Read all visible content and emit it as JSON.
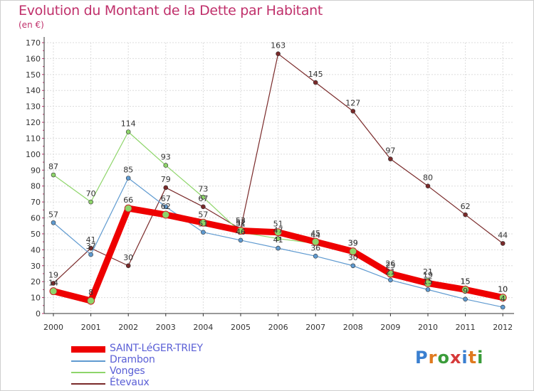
{
  "header": {
    "title": "Evolution du Montant de la Dette par Habitant",
    "subtitle": "(en €)"
  },
  "logo": {
    "text": "Proxiti",
    "letters": [
      "P",
      "r",
      "o",
      "x",
      "i",
      "t",
      "i"
    ],
    "colors": [
      "#3a7fd0",
      "#e07a1f",
      "#3a9c3a",
      "#d63a3a",
      "#3a7fd0",
      "#e07a1f",
      "#3a9c3a"
    ]
  },
  "chart_data": {
    "type": "line",
    "title": "Evolution du Montant de la Dette par Habitant",
    "subtitle": "(en €)",
    "xlabel": "",
    "ylabel": "",
    "ylim": [
      0,
      170
    ],
    "yticks": [
      0,
      10,
      20,
      30,
      40,
      50,
      60,
      70,
      80,
      90,
      100,
      110,
      120,
      130,
      140,
      150,
      160,
      170
    ],
    "grid": true,
    "legend": "bottom-left",
    "categories": [
      "2000",
      "2001",
      "2002",
      "2003",
      "2004",
      "2005",
      "2006",
      "2007",
      "2008",
      "2009",
      "2010",
      "2011",
      "2012"
    ],
    "series": [
      {
        "name": "Étevaux",
        "color": "#7a2a2a",
        "values": [
          19,
          41,
          30,
          79,
          67,
          53,
          163,
          145,
          127,
          97,
          80,
          62,
          44
        ],
        "labels": [
          "19",
          "41",
          "30",
          "79",
          "67",
          "53",
          "163",
          "145",
          "127",
          "97",
          "80",
          "62",
          "44"
        ]
      },
      {
        "name": "Drambon",
        "color": "#5f9ad0",
        "values": [
          57,
          37,
          85,
          67,
          51,
          46,
          41,
          36,
          30,
          21,
          15,
          9,
          4
        ],
        "labels": [
          "57",
          "37",
          "85",
          "67",
          "51",
          "46",
          "41",
          "36",
          "30",
          "21",
          "15",
          "9",
          "4"
        ]
      },
      {
        "name": "Vonges",
        "color": "#8ed56a",
        "values": [
          87,
          70,
          114,
          93,
          73,
          51,
          47,
          44,
          39,
          26,
          21,
          15,
          10
        ],
        "labels": [
          "87",
          "70",
          "114",
          "93",
          "73",
          "51",
          "47",
          "44",
          "39",
          "26",
          "21",
          "15",
          "10"
        ]
      },
      {
        "name": "SAINT-LéGER-TRIEY",
        "color": "#ee0000",
        "values": [
          14,
          8,
          66,
          62,
          57,
          52,
          51,
          45,
          39,
          25,
          19,
          15,
          10
        ],
        "labels": [
          "14",
          "8",
          "66",
          "62",
          "57",
          "52",
          "51",
          "45",
          "39",
          "25",
          "19",
          "15",
          "10"
        ]
      }
    ],
    "legend_entries": [
      {
        "name": "SAINT-LéGER-TRIEY",
        "color": "#ee0000"
      },
      {
        "name": "Drambon",
        "color": "#5f9ad0"
      },
      {
        "name": "Vonges",
        "color": "#8ed56a"
      },
      {
        "name": "Étevaux",
        "color": "#7a2a2a"
      }
    ]
  }
}
